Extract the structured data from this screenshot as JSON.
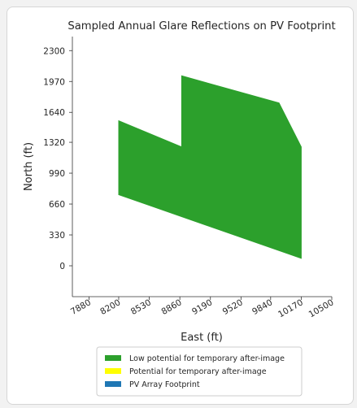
{
  "chart_data": {
    "type": "area",
    "title": "Sampled Annual Glare Reflections on PV Footprint",
    "xlabel": "East (ft)",
    "ylabel": "North (ft)",
    "xlim": [
      7700,
      10500
    ],
    "ylim": [
      -330,
      2450
    ],
    "xticks": [
      7880,
      8200,
      8530,
      8860,
      9190,
      9520,
      9840,
      10170,
      10500
    ],
    "yticks": [
      0,
      330,
      660,
      990,
      1320,
      1640,
      1970,
      2300
    ],
    "grid": false,
    "legend_position": "bottom",
    "series": [
      {
        "name": "Low potential for temporary after-image",
        "color": "#2ca02c",
        "polygon": [
          [
            8200,
            760
          ],
          [
            8200,
            1550
          ],
          [
            8880,
            1270
          ],
          [
            8880,
            2030
          ],
          [
            9930,
            1740
          ],
          [
            10170,
            1270
          ],
          [
            10170,
            80
          ]
        ]
      },
      {
        "name": "Potential for temporary after-image",
        "color": "#ffff00",
        "polygon": []
      },
      {
        "name": "PV Array Footprint",
        "color": "#1f77b4",
        "polygon": []
      }
    ]
  }
}
